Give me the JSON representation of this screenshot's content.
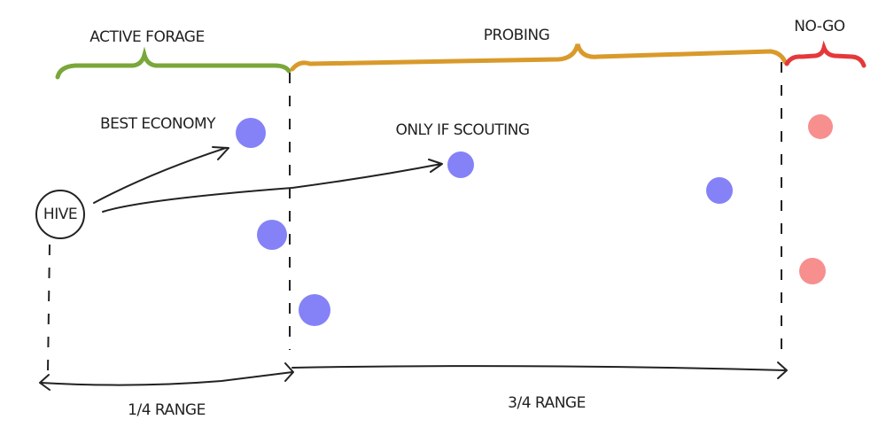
{
  "zones": [
    {
      "label": "ACTIVE FORAGE"
    },
    {
      "label": "PROBING"
    },
    {
      "label": "NO-GO"
    }
  ],
  "hive": {
    "label": "HIVE"
  },
  "annotations": [
    {
      "label": "BEST ECONOMY"
    },
    {
      "label": "ONLY IF SCOUTING"
    }
  ],
  "ranges": [
    {
      "label": "1/4 RANGE"
    },
    {
      "label": "3/4 RANGE"
    }
  ]
}
